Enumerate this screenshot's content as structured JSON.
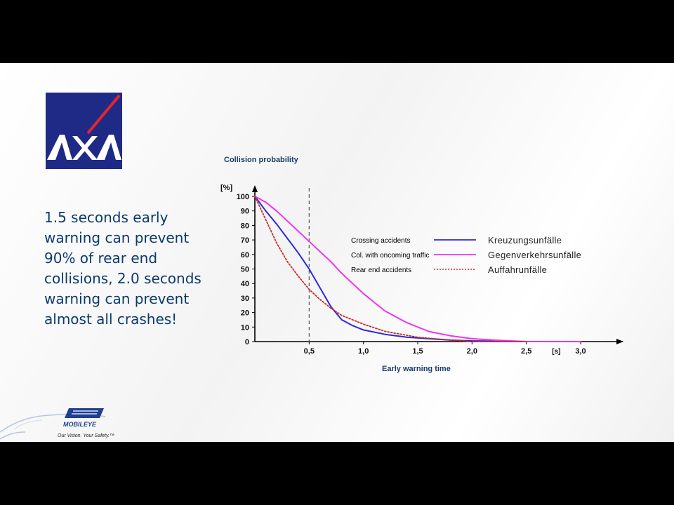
{
  "headline": {
    "lines": [
      "1.5 seconds early",
      "warning can prevent",
      "90% of rear end",
      "collisions, 2.0 seconds",
      "warning can prevent",
      "almost all crashes!"
    ]
  },
  "branding": {
    "axa_text": "AXA",
    "mobileye_text": "MOBILEYE",
    "tagline": "Our Vision. Your Safety.™"
  },
  "colors": {
    "blue": "#2a2ad8",
    "magenta": "#ee33ee",
    "red": "#cc2a2a",
    "text": "#0a3a6e"
  },
  "chart_data": {
    "type": "line",
    "title": "Collision probability",
    "xlabel": "Early warning time",
    "ylabel": "[%]",
    "x_unit": "[s]",
    "xlim": [
      0,
      3.4
    ],
    "ylim": [
      0,
      100
    ],
    "x_ticks": [
      "0,5",
      "1,0",
      "1,5",
      "2,0",
      "2,5",
      "3,0"
    ],
    "x_tick_values": [
      0.5,
      1.0,
      1.5,
      2.0,
      2.5,
      3.0
    ],
    "y_ticks": [
      0,
      10,
      20,
      30,
      40,
      50,
      60,
      70,
      80,
      90,
      100
    ],
    "reference_line_x": 0.5,
    "series": [
      {
        "name": "Kreuzungsunfälle",
        "annotation": "Crossing accidents",
        "color": "#2a2ad8",
        "style": "solid",
        "x": [
          0,
          0.1,
          0.2,
          0.3,
          0.4,
          0.5,
          0.6,
          0.7,
          0.8,
          0.9,
          1.0,
          1.2,
          1.4,
          1.6,
          1.8,
          2.0,
          2.5,
          3.0
        ],
        "y": [
          100,
          90,
          81,
          71,
          61,
          50,
          37,
          24,
          15,
          11,
          8,
          5,
          3,
          2,
          1,
          0.5,
          0,
          0
        ]
      },
      {
        "name": "Gegenverkehrsunfälle",
        "annotation": "Col. with oncoming traffic",
        "color": "#ee33ee",
        "style": "solid",
        "x": [
          0,
          0.1,
          0.2,
          0.3,
          0.4,
          0.5,
          0.6,
          0.7,
          0.8,
          0.9,
          1.0,
          1.1,
          1.2,
          1.4,
          1.6,
          1.8,
          2.0,
          2.2,
          2.5,
          3.0
        ],
        "y": [
          100,
          96,
          90,
          83,
          76,
          69,
          62,
          55,
          47,
          40,
          33,
          27,
          21,
          13,
          7,
          4,
          2,
          1,
          0,
          0
        ]
      },
      {
        "name": "Auffahrunfälle",
        "annotation": "Rear end accidents",
        "color": "#cc2a2a",
        "style": "dotted",
        "x": [
          0,
          0.1,
          0.2,
          0.3,
          0.4,
          0.5,
          0.6,
          0.7,
          0.8,
          0.9,
          1.0,
          1.2,
          1.5,
          1.8,
          2.0,
          2.5
        ],
        "y": [
          100,
          84,
          68,
          55,
          45,
          36,
          29,
          23,
          18,
          15,
          12,
          7,
          3,
          1,
          0,
          0
        ]
      }
    ]
  }
}
